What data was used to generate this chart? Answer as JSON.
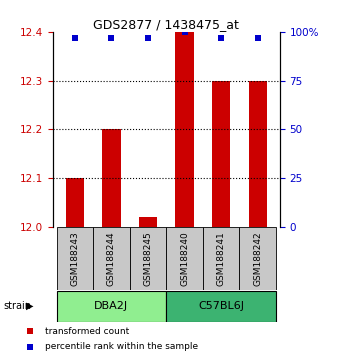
{
  "title": "GDS2877 / 1438475_at",
  "samples": [
    "GSM188243",
    "GSM188244",
    "GSM188245",
    "GSM188240",
    "GSM188241",
    "GSM188242"
  ],
  "bar_values": [
    12.1,
    12.2,
    12.02,
    12.4,
    12.3,
    12.3
  ],
  "bar_baseline": 12.0,
  "percentile_values": [
    97,
    97,
    97,
    100,
    97,
    97
  ],
  "ylim_left": [
    12.0,
    12.4
  ],
  "ylim_right": [
    0,
    100
  ],
  "yticks_left": [
    12.0,
    12.1,
    12.2,
    12.3,
    12.4
  ],
  "yticks_right": [
    0,
    25,
    50,
    75,
    100
  ],
  "ytick_labels_right": [
    "0",
    "25",
    "50",
    "75",
    "100%"
  ],
  "grid_yticks": [
    12.1,
    12.2,
    12.3
  ],
  "groups": [
    {
      "label": "DBA2J",
      "start": 0,
      "end": 2,
      "color": "#90EE90"
    },
    {
      "label": "C57BL6J",
      "start": 3,
      "end": 5,
      "color": "#3CB371"
    }
  ],
  "bar_color": "#CC0000",
  "blue_marker_color": "#0000CC",
  "sample_box_color": "#C8C8C8",
  "left_tick_color": "#CC0000",
  "right_tick_color": "#0000CC",
  "legend_red_label": "transformed count",
  "legend_blue_label": "percentile rank within the sample"
}
